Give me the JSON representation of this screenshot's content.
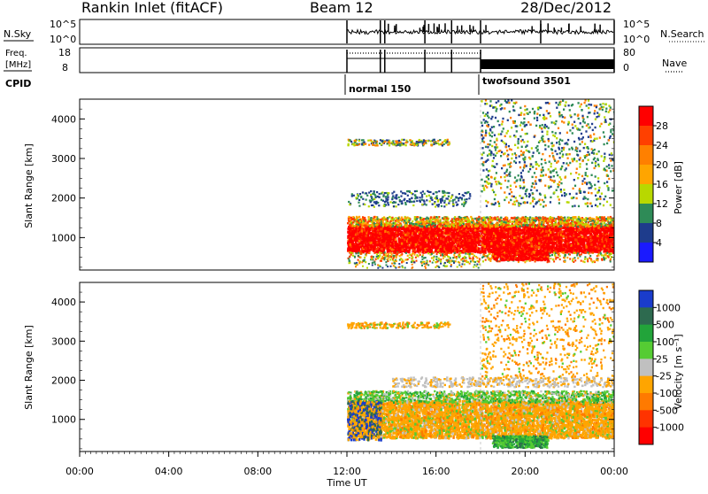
{
  "header": {
    "station": "Rankin Inlet (fitACF)",
    "beam": "Beam 12",
    "date": "28/Dec/2012"
  },
  "strips": {
    "nsky": {
      "left_label": "N.Sky",
      "right_label": "N.Search",
      "left_ticks": [
        "10^5",
        "10^0"
      ],
      "right_ticks": [
        "10^5",
        "10^0"
      ]
    },
    "freq": {
      "left_label_1": "Freq.",
      "left_label_2": "[MHz]",
      "right_label": "Nave",
      "left_ticks": [
        "18",
        "8"
      ],
      "right_ticks": [
        "80",
        "0"
      ]
    },
    "cpid": {
      "label": "CPID",
      "segments": [
        {
          "name": "normal 150",
          "start_hour": 12.0
        },
        {
          "name": "twofsound 3501",
          "start_hour": 18.0
        }
      ]
    }
  },
  "panels": {
    "power": {
      "ylabel": "Slant Range [km]",
      "yticks": [
        "4000",
        "3000",
        "2000",
        "1000"
      ],
      "colorbar_label": "Power [dB]",
      "colorbar_ticks": [
        "28",
        "24",
        "20",
        "16",
        "12",
        "8",
        "4"
      ]
    },
    "velocity": {
      "ylabel": "Slant Range [km]",
      "yticks": [
        "4000",
        "3000",
        "2000",
        "1000"
      ],
      "colorbar_label": "Velocity [m s⁻¹]",
      "colorbar_ticks": [
        "1000",
        "500",
        "100",
        "25",
        "-25",
        "-100",
        "-500",
        "-1000"
      ]
    }
  },
  "xaxis": {
    "label": "Time UT",
    "ticks": [
      "00:00",
      "04:00",
      "08:00",
      "12:00",
      "16:00",
      "20:00",
      "00:00"
    ]
  },
  "colors": {
    "power_scale": [
      "#ff0000",
      "#ff4000",
      "#ff8000",
      "#ffa500",
      "#b8d800",
      "#2e8b57",
      "#1e3c8c",
      "#1a1aff"
    ],
    "velocity_scale": [
      "#1a3ccc",
      "#2d6a4f",
      "#22a43a",
      "#55cc33",
      "#c0c0c0",
      "#ffa500",
      "#ff7a00",
      "#ff3300",
      "#ff0000"
    ],
    "nave_fill": "#000000"
  },
  "chart_data": [
    {
      "type": "heatmap",
      "title": "Power",
      "xlabel": "Time UT",
      "ylabel": "Slant Range [km]",
      "xlim_hours": [
        0,
        24
      ],
      "ylim_km": [
        180,
        4500
      ],
      "colorbar_range_db": [
        0,
        30
      ],
      "data_start_hour": 12.0,
      "regions": [
        {
          "x_hours": [
            12.0,
            24.0
          ],
          "y_km": [
            600,
            1500
          ],
          "dominant_db": 28
        },
        {
          "x_hours": [
            12.0,
            18.0
          ],
          "y_km": [
            1800,
            2300
          ],
          "dominant_db": 8
        },
        {
          "x_hours": [
            12.0,
            16.5
          ],
          "y_km": [
            3300,
            3500
          ],
          "dominant_db": 20
        },
        {
          "x_hours": [
            18.0,
            24.0
          ],
          "y_km": [
            2000,
            4500
          ],
          "dominant_db": 8
        }
      ]
    },
    {
      "type": "heatmap",
      "title": "Velocity",
      "xlabel": "Time UT",
      "ylabel": "Slant Range [km]",
      "xlim_hours": [
        0,
        24
      ],
      "ylim_km": [
        180,
        4500
      ],
      "colorbar_range_ms": [
        -1000,
        1000
      ],
      "data_start_hour": 12.0,
      "regions": [
        {
          "x_hours": [
            12.0,
            24.0
          ],
          "y_km": [
            500,
            1600
          ],
          "dominant_ms": -100
        },
        {
          "x_hours": [
            12.0,
            24.0
          ],
          "y_km": [
            1600,
            2100
          ],
          "dominant_ms": 100
        },
        {
          "x_hours": [
            12.0,
            16.5
          ],
          "y_km": [
            3300,
            3500
          ],
          "dominant_ms": -100
        },
        {
          "x_hours": [
            18.0,
            24.0
          ],
          "y_km": [
            2100,
            4500
          ],
          "dominant_ms": -100
        }
      ]
    }
  ]
}
